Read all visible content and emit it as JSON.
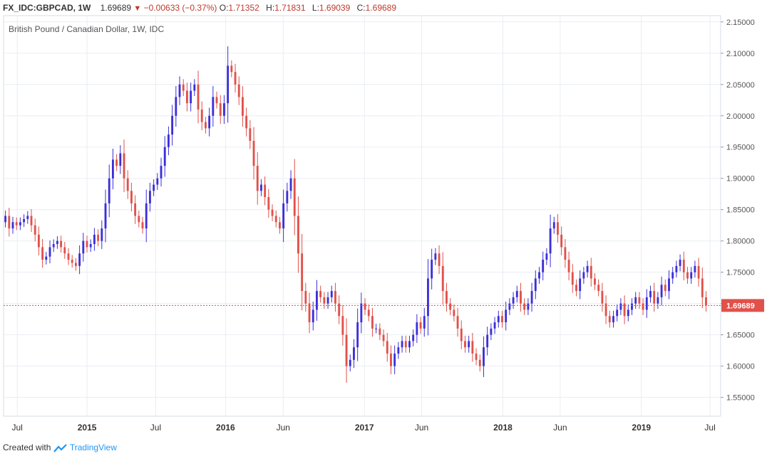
{
  "header": {
    "symbol": "FX_IDC:GBPCAD, 1W",
    "last": "1.69689",
    "change": "−0.00633 (−0.37%)",
    "o_label": "O:",
    "o_value": "1.71352",
    "h_label": "H:",
    "h_value": "1.71831",
    "l_label": "L:",
    "l_value": "1.69039",
    "c_label": "C:",
    "c_value": "1.69689"
  },
  "footer": {
    "created_with": "Created with",
    "brand": "TradingView"
  },
  "colors": {
    "up": "#3b2fd9",
    "down": "#e0514a",
    "grid": "#e9edf2",
    "price_tag": "#e0514a",
    "axis": "#555555"
  },
  "chart_data": {
    "type": "candlestick",
    "title": "British Pound / Canadian Dollar, 1W, IDC",
    "last_price": 1.69689,
    "last_price_label": "1.69689",
    "ylim": [
      1.52,
      2.16
    ],
    "y_ticks": [
      1.55,
      1.6,
      1.65,
      1.7,
      1.75,
      1.8,
      1.85,
      1.9,
      1.95,
      2.0,
      2.05,
      2.1,
      2.15
    ],
    "y_tick_labels": [
      "1.55000",
      "1.60000",
      "1.65000",
      "1.70000",
      "1.75000",
      "1.80000",
      "1.85000",
      "1.90000",
      "1.95000",
      "2.00000",
      "2.05000",
      "2.10000",
      "2.15000"
    ],
    "x_range": [
      "2014-05-26",
      "2019-07-29"
    ],
    "x_ticks": [
      {
        "date": "2014-07-01",
        "label": "Jul"
      },
      {
        "date": "2015-01-01",
        "label": "2015"
      },
      {
        "date": "2015-07-01",
        "label": "Jul"
      },
      {
        "date": "2016-01-01",
        "label": "2016"
      },
      {
        "date": "2016-06-01",
        "label": "Jun"
      },
      {
        "date": "2017-01-01",
        "label": "2017"
      },
      {
        "date": "2017-06-01",
        "label": "Jun"
      },
      {
        "date": "2018-01-01",
        "label": "2018"
      },
      {
        "date": "2018-06-01",
        "label": "Jun"
      },
      {
        "date": "2019-01-01",
        "label": "2019"
      },
      {
        "date": "2019-07-01",
        "label": "Jul"
      }
    ],
    "grid": true,
    "closes_start": 1.83,
    "closes": [
      1.84,
      1.82,
      1.83,
      1.825,
      1.83,
      1.835,
      1.84,
      1.825,
      1.81,
      1.79,
      1.77,
      1.775,
      1.79,
      1.795,
      1.8,
      1.79,
      1.78,
      1.77,
      1.765,
      1.76,
      1.78,
      1.8,
      1.79,
      1.795,
      1.81,
      1.8,
      1.82,
      1.86,
      1.9,
      1.93,
      1.92,
      1.94,
      1.9,
      1.88,
      1.86,
      1.84,
      1.83,
      1.82,
      1.86,
      1.88,
      1.89,
      1.9,
      1.92,
      1.95,
      1.97,
      2.0,
      2.03,
      2.05,
      2.04,
      2.02,
      2.04,
      2.05,
      2.01,
      1.99,
      1.98,
      2.0,
      2.03,
      2.02,
      2.0,
      2.02,
      2.08,
      2.07,
      2.05,
      2.03,
      2.0,
      1.98,
      1.96,
      1.92,
      1.88,
      1.89,
      1.87,
      1.85,
      1.84,
      1.83,
      1.82,
      1.86,
      1.88,
      1.9,
      1.84,
      1.78,
      1.72,
      1.7,
      1.67,
      1.69,
      1.72,
      1.71,
      1.7,
      1.71,
      1.72,
      1.7,
      1.68,
      1.65,
      1.6,
      1.61,
      1.63,
      1.67,
      1.7,
      1.69,
      1.68,
      1.66,
      1.66,
      1.65,
      1.64,
      1.62,
      1.6,
      1.62,
      1.63,
      1.64,
      1.63,
      1.64,
      1.65,
      1.67,
      1.66,
      1.68,
      1.74,
      1.77,
      1.78,
      1.76,
      1.72,
      1.7,
      1.69,
      1.68,
      1.66,
      1.64,
      1.63,
      1.64,
      1.62,
      1.61,
      1.6,
      1.63,
      1.65,
      1.66,
      1.67,
      1.68,
      1.67,
      1.69,
      1.7,
      1.71,
      1.72,
      1.7,
      1.69,
      1.7,
      1.72,
      1.74,
      1.75,
      1.77,
      1.78,
      1.82,
      1.83,
      1.81,
      1.79,
      1.77,
      1.75,
      1.73,
      1.72,
      1.74,
      1.75,
      1.76,
      1.74,
      1.73,
      1.72,
      1.7,
      1.68,
      1.67,
      1.68,
      1.69,
      1.7,
      1.68,
      1.69,
      1.7,
      1.71,
      1.7,
      1.69,
      1.71,
      1.72,
      1.7,
      1.71,
      1.73,
      1.72,
      1.74,
      1.75,
      1.76,
      1.77,
      1.75,
      1.74,
      1.75,
      1.76,
      1.74,
      1.71,
      1.697
    ]
  }
}
